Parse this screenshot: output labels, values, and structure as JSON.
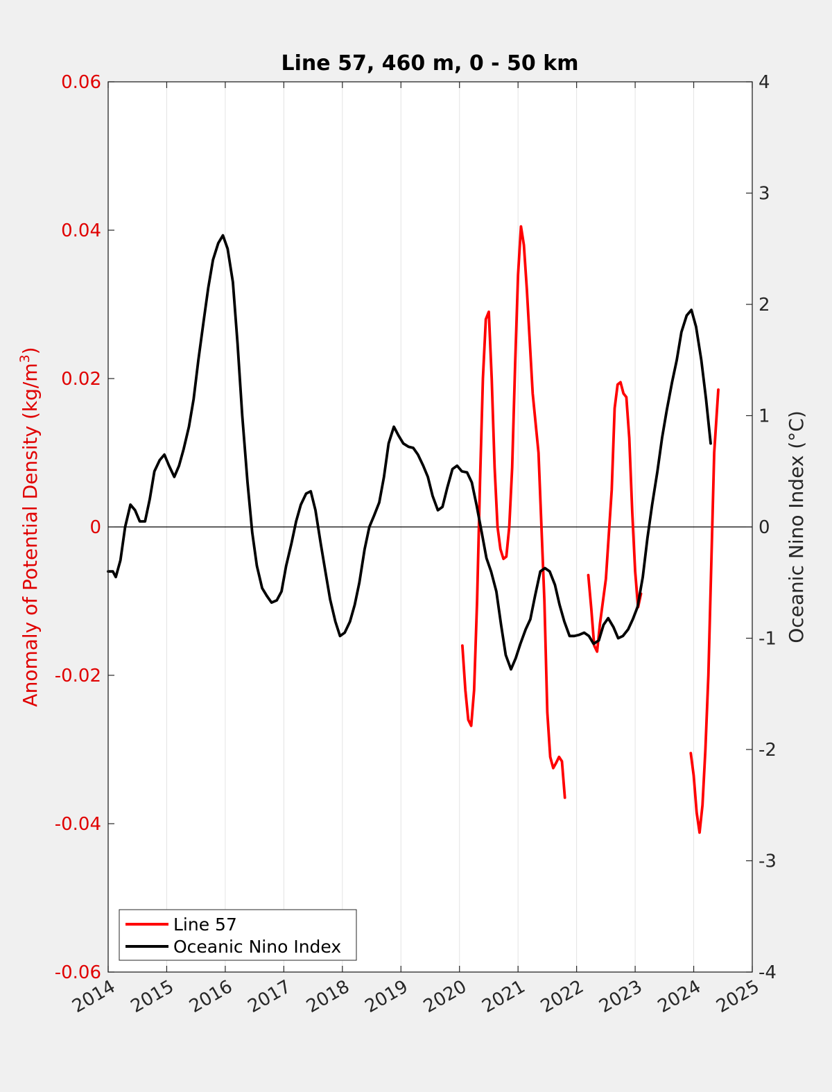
{
  "chart_data": {
    "type": "line",
    "title": "Line 57, 460 m, 0 - 50 km",
    "ylabel_left": "Anomaly of Potential Density (kg/m",
    "ylabel_left_sup": "3",
    "ylabel_left_end": ")",
    "ylabel_right": "Oceanic Nino Index (°C)",
    "xlim": [
      2014,
      2025
    ],
    "ylim_left": [
      -0.06,
      0.06
    ],
    "ylim_right": [
      -4,
      4
    ],
    "grid": "vertical",
    "legend_position": "bottom-left",
    "x_ticks": [
      "2014",
      "2015",
      "2016",
      "2017",
      "2018",
      "2019",
      "2020",
      "2021",
      "2022",
      "2023",
      "2024",
      "2025"
    ],
    "y_left_ticks": [
      "0.06",
      "0.04",
      "0.02",
      "0",
      "-0.02",
      "-0.04",
      "-0.06"
    ],
    "y_right_ticks": [
      "4",
      "3",
      "2",
      "1",
      "0",
      "-1",
      "-2",
      "-3",
      "-4"
    ],
    "series": [
      {
        "name": "Line 57",
        "axis": "left",
        "color": "#ff0000",
        "segments": [
          [
            [
              2020.05,
              -0.016
            ],
            [
              2020.1,
              -0.022
            ],
            [
              2020.15,
              -0.026
            ],
            [
              2020.2,
              -0.0268
            ],
            [
              2020.25,
              -0.022
            ],
            [
              2020.3,
              -0.01
            ],
            [
              2020.35,
              0.006
            ],
            [
              2020.4,
              0.02
            ],
            [
              2020.45,
              0.028
            ],
            [
              2020.5,
              0.029
            ],
            [
              2020.55,
              0.02
            ],
            [
              2020.6,
              0.008
            ],
            [
              2020.65,
              0.0
            ],
            [
              2020.7,
              -0.003
            ],
            [
              2020.75,
              -0.0043
            ],
            [
              2020.8,
              -0.004
            ],
            [
              2020.85,
              0.0
            ],
            [
              2020.9,
              0.008
            ],
            [
              2020.95,
              0.022
            ],
            [
              2021.0,
              0.034
            ],
            [
              2021.05,
              0.0405
            ],
            [
              2021.1,
              0.038
            ],
            [
              2021.15,
              0.032
            ],
            [
              2021.2,
              0.025
            ],
            [
              2021.25,
              0.018
            ],
            [
              2021.35,
              0.01
            ],
            [
              2021.45,
              -0.01
            ],
            [
              2021.5,
              -0.025
            ],
            [
              2021.55,
              -0.031
            ],
            [
              2021.6,
              -0.0325
            ],
            [
              2021.65,
              -0.0318
            ],
            [
              2021.7,
              -0.031
            ],
            [
              2021.75,
              -0.0316
            ],
            [
              2021.8,
              -0.0365
            ]
          ],
          [
            [
              2022.2,
              -0.0065
            ],
            [
              2022.25,
              -0.011
            ],
            [
              2022.3,
              -0.016
            ],
            [
              2022.35,
              -0.0168
            ],
            [
              2022.4,
              -0.013
            ],
            [
              2022.5,
              -0.007
            ],
            [
              2022.6,
              0.005
            ],
            [
              2022.65,
              0.016
            ],
            [
              2022.7,
              0.0192
            ],
            [
              2022.75,
              0.0195
            ],
            [
              2022.8,
              0.018
            ],
            [
              2022.85,
              0.0175
            ],
            [
              2022.9,
              0.012
            ],
            [
              2022.95,
              0.002
            ],
            [
              2023.0,
              -0.006
            ],
            [
              2023.05,
              -0.0108
            ],
            [
              2023.1,
              -0.009
            ]
          ],
          [
            [
              2023.95,
              -0.0305
            ],
            [
              2024.0,
              -0.0335
            ],
            [
              2024.05,
              -0.0385
            ],
            [
              2024.1,
              -0.0412
            ],
            [
              2024.15,
              -0.0375
            ],
            [
              2024.2,
              -0.03
            ],
            [
              2024.25,
              -0.02
            ],
            [
              2024.3,
              -0.005
            ],
            [
              2024.35,
              0.01
            ],
            [
              2024.42,
              0.0185
            ]
          ]
        ]
      },
      {
        "name": "Oceanic Nino Index",
        "axis": "right",
        "color": "#000000",
        "points": [
          [
            2014.0,
            -0.4
          ],
          [
            2014.08,
            -0.4
          ],
          [
            2014.13,
            -0.45
          ],
          [
            2014.21,
            -0.3
          ],
          [
            2014.29,
            0.0
          ],
          [
            2014.38,
            0.2
          ],
          [
            2014.46,
            0.15
          ],
          [
            2014.54,
            0.05
          ],
          [
            2014.63,
            0.05
          ],
          [
            2014.71,
            0.25
          ],
          [
            2014.79,
            0.5
          ],
          [
            2014.88,
            0.6
          ],
          [
            2014.96,
            0.65
          ],
          [
            2015.04,
            0.55
          ],
          [
            2015.13,
            0.45
          ],
          [
            2015.21,
            0.55
          ],
          [
            2015.29,
            0.7
          ],
          [
            2015.38,
            0.9
          ],
          [
            2015.46,
            1.15
          ],
          [
            2015.54,
            1.5
          ],
          [
            2015.63,
            1.85
          ],
          [
            2015.71,
            2.15
          ],
          [
            2015.79,
            2.4
          ],
          [
            2015.88,
            2.55
          ],
          [
            2015.96,
            2.62
          ],
          [
            2016.04,
            2.5
          ],
          [
            2016.13,
            2.2
          ],
          [
            2016.21,
            1.65
          ],
          [
            2016.29,
            1.0
          ],
          [
            2016.38,
            0.4
          ],
          [
            2016.46,
            -0.05
          ],
          [
            2016.54,
            -0.35
          ],
          [
            2016.63,
            -0.55
          ],
          [
            2016.71,
            -0.62
          ],
          [
            2016.79,
            -0.68
          ],
          [
            2016.88,
            -0.66
          ],
          [
            2016.96,
            -0.58
          ],
          [
            2017.04,
            -0.35
          ],
          [
            2017.13,
            -0.15
          ],
          [
            2017.21,
            0.05
          ],
          [
            2017.29,
            0.2
          ],
          [
            2017.38,
            0.3
          ],
          [
            2017.46,
            0.32
          ],
          [
            2017.54,
            0.15
          ],
          [
            2017.63,
            -0.15
          ],
          [
            2017.71,
            -0.4
          ],
          [
            2017.79,
            -0.65
          ],
          [
            2017.88,
            -0.85
          ],
          [
            2017.96,
            -0.98
          ],
          [
            2018.04,
            -0.95
          ],
          [
            2018.13,
            -0.85
          ],
          [
            2018.21,
            -0.7
          ],
          [
            2018.29,
            -0.5
          ],
          [
            2018.38,
            -0.2
          ],
          [
            2018.46,
            0.0
          ],
          [
            2018.54,
            0.1
          ],
          [
            2018.63,
            0.22
          ],
          [
            2018.71,
            0.45
          ],
          [
            2018.79,
            0.75
          ],
          [
            2018.88,
            0.9
          ],
          [
            2018.96,
            0.82
          ],
          [
            2019.04,
            0.75
          ],
          [
            2019.13,
            0.72
          ],
          [
            2019.21,
            0.71
          ],
          [
            2019.29,
            0.65
          ],
          [
            2019.38,
            0.55
          ],
          [
            2019.46,
            0.45
          ],
          [
            2019.54,
            0.28
          ],
          [
            2019.63,
            0.15
          ],
          [
            2019.71,
            0.18
          ],
          [
            2019.79,
            0.35
          ],
          [
            2019.88,
            0.52
          ],
          [
            2019.96,
            0.55
          ],
          [
            2020.04,
            0.5
          ],
          [
            2020.13,
            0.49
          ],
          [
            2020.21,
            0.4
          ],
          [
            2020.29,
            0.2
          ],
          [
            2020.38,
            -0.05
          ],
          [
            2020.46,
            -0.28
          ],
          [
            2020.54,
            -0.4
          ],
          [
            2020.63,
            -0.58
          ],
          [
            2020.71,
            -0.88
          ],
          [
            2020.79,
            -1.15
          ],
          [
            2020.88,
            -1.28
          ],
          [
            2020.96,
            -1.18
          ],
          [
            2021.04,
            -1.05
          ],
          [
            2021.13,
            -0.92
          ],
          [
            2021.21,
            -0.83
          ],
          [
            2021.29,
            -0.62
          ],
          [
            2021.38,
            -0.4
          ],
          [
            2021.46,
            -0.37
          ],
          [
            2021.54,
            -0.4
          ],
          [
            2021.63,
            -0.52
          ],
          [
            2021.71,
            -0.7
          ],
          [
            2021.79,
            -0.85
          ],
          [
            2021.88,
            -0.98
          ],
          [
            2021.96,
            -0.98
          ],
          [
            2022.04,
            -0.97
          ],
          [
            2022.13,
            -0.95
          ],
          [
            2022.21,
            -0.98
          ],
          [
            2022.29,
            -1.05
          ],
          [
            2022.38,
            -1.02
          ],
          [
            2022.46,
            -0.88
          ],
          [
            2022.54,
            -0.82
          ],
          [
            2022.63,
            -0.9
          ],
          [
            2022.71,
            -1.0
          ],
          [
            2022.79,
            -0.98
          ],
          [
            2022.88,
            -0.92
          ],
          [
            2022.96,
            -0.83
          ],
          [
            2023.04,
            -0.72
          ],
          [
            2023.13,
            -0.45
          ],
          [
            2023.21,
            -0.1
          ],
          [
            2023.29,
            0.2
          ],
          [
            2023.38,
            0.5
          ],
          [
            2023.46,
            0.8
          ],
          [
            2023.54,
            1.05
          ],
          [
            2023.63,
            1.3
          ],
          [
            2023.71,
            1.5
          ],
          [
            2023.79,
            1.75
          ],
          [
            2023.88,
            1.9
          ],
          [
            2023.96,
            1.95
          ],
          [
            2024.04,
            1.8
          ],
          [
            2024.13,
            1.5
          ],
          [
            2024.21,
            1.15
          ],
          [
            2024.29,
            0.75
          ]
        ]
      }
    ]
  }
}
